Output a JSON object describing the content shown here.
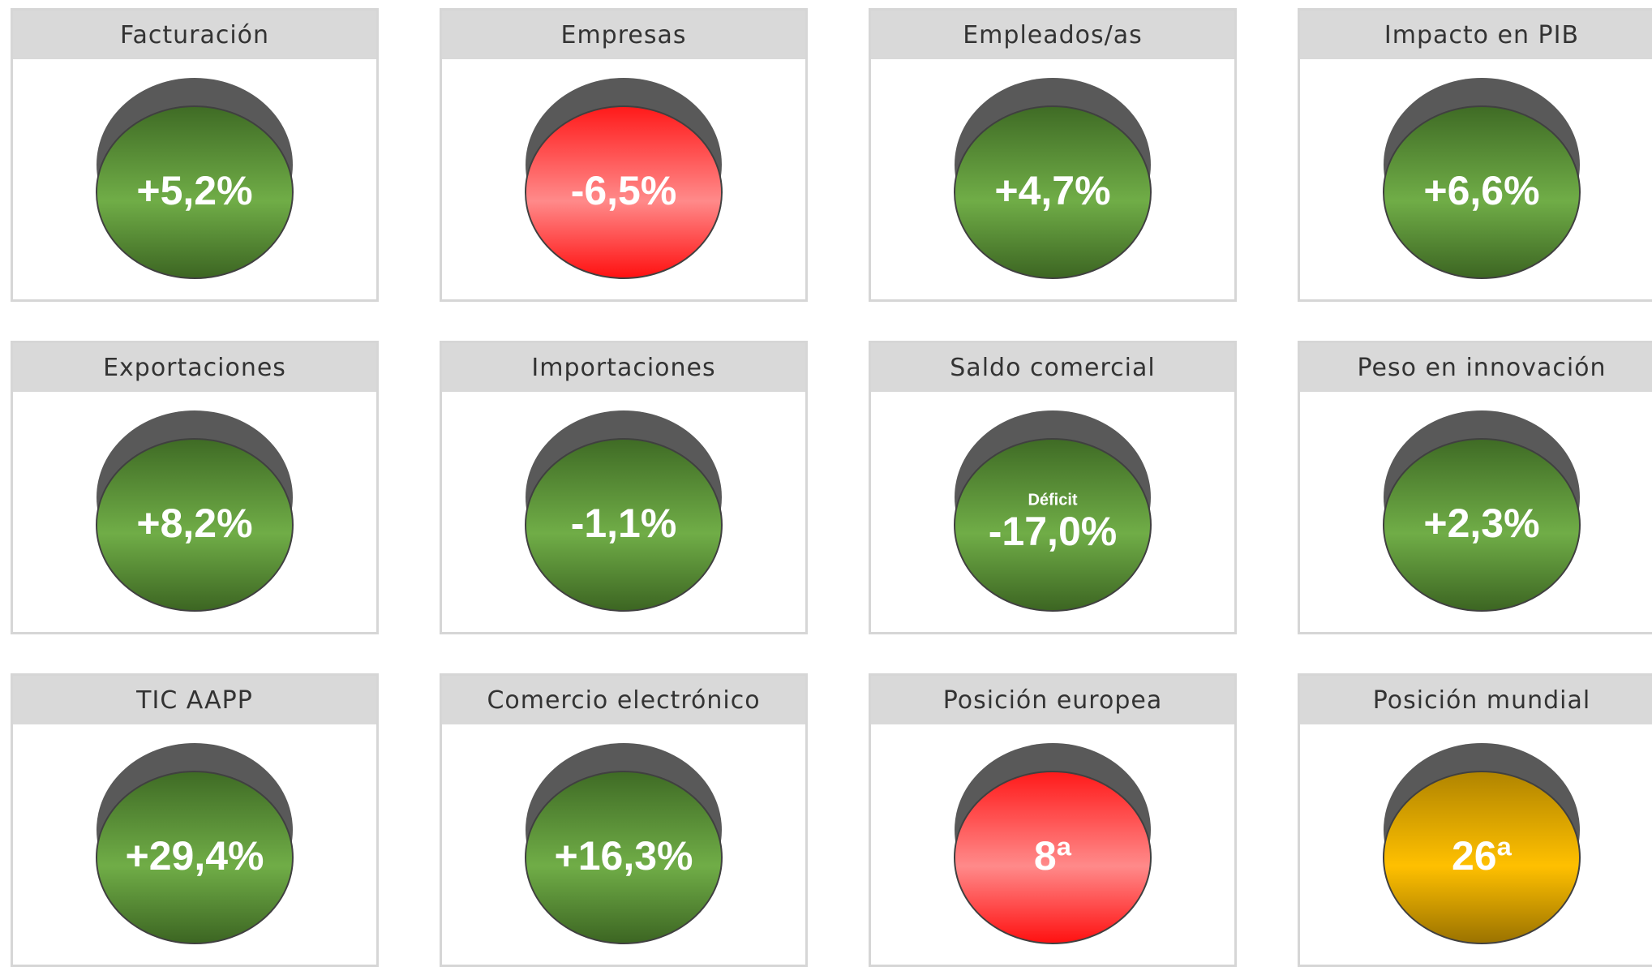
{
  "cards": [
    {
      "title": "Facturación",
      "value": "+5,2%",
      "color": "green"
    },
    {
      "title": "Empresas",
      "value": "-6,5%",
      "color": "red"
    },
    {
      "title": "Empleados/as",
      "value": "+4,7%",
      "color": "green"
    },
    {
      "title": "Impacto en PIB",
      "value": "+6,6%",
      "color": "green"
    },
    {
      "title": "Exportaciones",
      "value": "+8,2%",
      "color": "green"
    },
    {
      "title": "Importaciones",
      "value": "-1,1%",
      "color": "green"
    },
    {
      "title": "Saldo comercial",
      "value": "-17,0%",
      "note": "Déficit",
      "color": "green"
    },
    {
      "title": "Peso en innovación",
      "value": "+2,3%",
      "color": "green"
    },
    {
      "title": "TIC AAPP",
      "value": "+29,4%",
      "color": "green"
    },
    {
      "title": "Comercio electrónico",
      "value": "+16,3%",
      "color": "green"
    },
    {
      "title": "Posición europea",
      "value": "8ª",
      "color": "red"
    },
    {
      "title": "Posición mundial",
      "value": "26ª",
      "color": "amber"
    }
  ]
}
